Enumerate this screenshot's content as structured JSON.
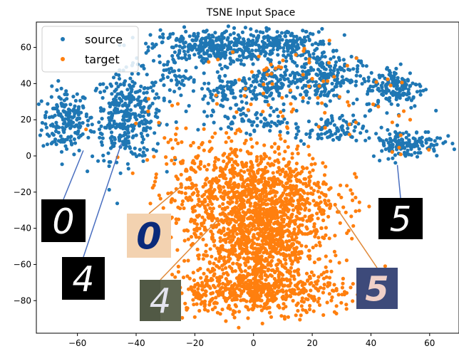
{
  "chart_data": {
    "type": "scatter",
    "title": "TSNE Input Space",
    "xlabel": "",
    "ylabel": "",
    "xlim": [
      -74,
      70
    ],
    "ylim": [
      -98,
      74
    ],
    "xticks": [
      -60,
      -40,
      -20,
      0,
      20,
      40,
      60
    ],
    "yticks": [
      60,
      40,
      20,
      0,
      -20,
      -40,
      -60,
      -80
    ],
    "grid": false,
    "legend_position": "top-left",
    "series": [
      {
        "name": "source",
        "color": "#1f77b4",
        "clusters": [
          {
            "cx": -64,
            "cy": 19,
            "sx": 4,
            "sy": 9,
            "n": 170
          },
          {
            "cx": -43,
            "cy": 22,
            "sx": 6,
            "sy": 12,
            "n": 360
          },
          {
            "cx": -15,
            "cy": 60,
            "sx": 10,
            "sy": 5,
            "n": 330
          },
          {
            "cx": 10,
            "cy": 62,
            "sx": 8,
            "sy": 4,
            "n": 180
          },
          {
            "cx": -25,
            "cy": 42,
            "sx": 4,
            "sy": 4,
            "n": 35
          },
          {
            "cx": -8,
            "cy": 35,
            "sx": 7,
            "sy": 6,
            "n": 120
          },
          {
            "cx": 8,
            "cy": 40,
            "sx": 6,
            "sy": 6,
            "n": 120
          },
          {
            "cx": 24,
            "cy": 44,
            "sx": 6,
            "sy": 7,
            "n": 200
          },
          {
            "cx": 26,
            "cy": 14,
            "sx": 6,
            "sy": 4,
            "n": 95
          },
          {
            "cx": 1,
            "cy": 19,
            "sx": 6,
            "sy": 3,
            "n": 55
          },
          {
            "cx": 48,
            "cy": 38,
            "sx": 5,
            "sy": 6,
            "n": 160
          },
          {
            "cx": 52,
            "cy": 7,
            "sx": 6,
            "sy": 4,
            "n": 140
          }
        ]
      },
      {
        "name": "target",
        "color": "#ff7f0e",
        "clusters": [
          {
            "cx": 0,
            "cy": -22,
            "sx": 14,
            "sy": 14,
            "n": 1050
          },
          {
            "cx": 2,
            "cy": -50,
            "sx": 10,
            "sy": 12,
            "n": 700
          },
          {
            "cx": 0,
            "cy": -75,
            "sx": 15,
            "sy": 6,
            "n": 550
          },
          {
            "cx": -21,
            "cy": 4,
            "sx": 15,
            "sy": 14,
            "n": 40
          },
          {
            "cx": 15,
            "cy": 40,
            "sx": 16,
            "sy": 14,
            "n": 60
          },
          {
            "cx": 48,
            "cy": 25,
            "sx": 6,
            "sy": 12,
            "n": 16
          }
        ]
      }
    ],
    "annotations": [
      {
        "label": "0",
        "source": "source",
        "style": "white-on-black"
      },
      {
        "label": "4",
        "source": "source",
        "style": "white-on-black"
      },
      {
        "label": "5",
        "source": "source",
        "style": "white-on-black"
      },
      {
        "label": "0",
        "source": "target",
        "style": "blue-on-beige"
      },
      {
        "label": "4",
        "source": "target",
        "style": "photo-gray"
      },
      {
        "label": "5",
        "source": "target",
        "style": "photo-navy"
      }
    ]
  }
}
